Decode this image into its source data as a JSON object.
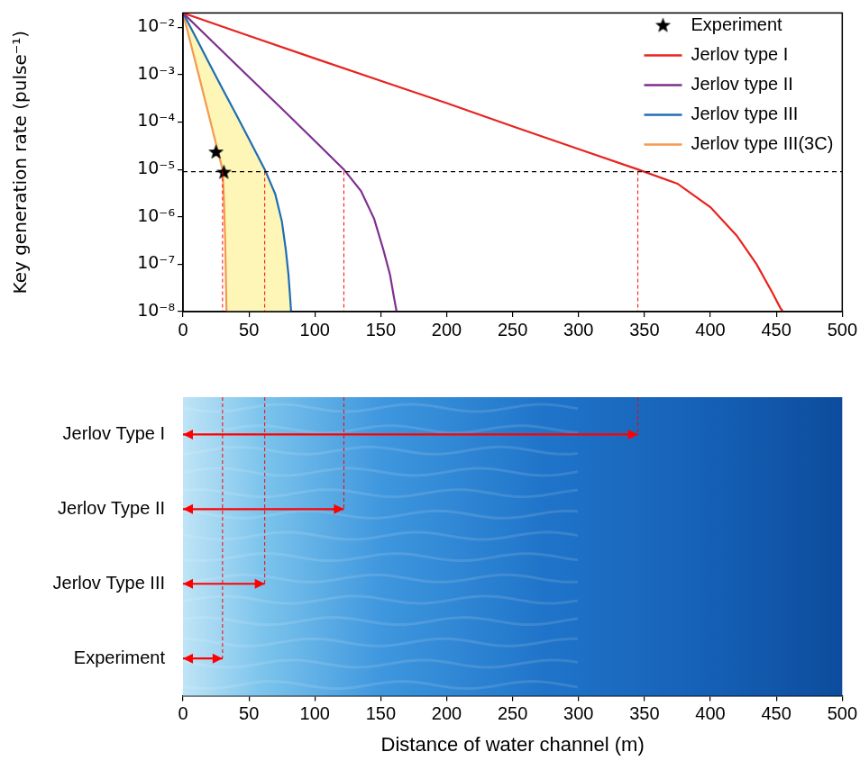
{
  "chart_data": [
    {
      "type": "line",
      "y_label": "Key generation rate (pulse⁻¹)",
      "log": "y",
      "grid": false,
      "legend": "upper right",
      "xlim": [
        0,
        500
      ],
      "xticks": [
        0,
        50,
        100,
        150,
        200,
        250,
        300,
        350,
        400,
        450,
        500
      ],
      "ylim": [
        1e-08,
        0.02
      ],
      "yticks": [
        {
          "value": 1e-08,
          "label": "10⁻⁸"
        },
        {
          "value": 1e-07,
          "label": "10⁻⁷"
        },
        {
          "value": 1e-06,
          "label": "10⁻⁶"
        },
        {
          "value": 1e-05,
          "label": "10⁻⁵"
        },
        {
          "value": 0.0001,
          "label": "10⁻⁴"
        },
        {
          "value": 0.001,
          "label": "10⁻³"
        },
        {
          "value": 0.01,
          "label": "10⁻²"
        }
      ],
      "hline": {
        "y": 9e-06,
        "line_style": "dashed",
        "color": "#000000"
      },
      "series": [
        {
          "name": "Experiment",
          "type": "scatter",
          "marker": "star",
          "color": "#000000",
          "x": [
            25,
            31
          ],
          "values": [
            2.4e-05,
            9e-06
          ]
        },
        {
          "name": "Jerlov type I",
          "type": "line",
          "color": "#e8231f",
          "x": [
            0,
            50,
            100,
            150,
            200,
            250,
            300,
            345,
            375,
            400,
            420,
            435,
            447,
            453,
            455
          ],
          "values": [
            0.02,
            0.0066,
            0.0022,
            0.00074,
            0.00025,
            8.1e-05,
            2.7e-05,
            1e-05,
            5e-06,
            1.6e-06,
            4e-07,
            1e-07,
            2.5e-08,
            1.2e-08,
            1e-08
          ]
        },
        {
          "name": "Jerlov type II",
          "type": "line",
          "color": "#7e2f8e",
          "x": [
            0,
            25,
            50,
            75,
            100,
            122,
            135,
            145,
            152,
            157,
            160,
            162
          ],
          "values": [
            0.02,
            0.0042,
            0.00089,
            0.00019,
            4e-05,
            1e-05,
            3.5e-06,
            9e-07,
            2e-07,
            6e-08,
            2e-08,
            1e-08
          ]
        },
        {
          "name": "Jerlov type III",
          "type": "line",
          "color": "#1f6db3",
          "x": [
            0,
            10,
            20,
            30,
            40,
            50,
            62,
            70,
            75,
            78,
            80,
            81,
            82
          ],
          "values": [
            0.02,
            0.0059,
            0.0017,
            0.0005,
            0.00015,
            4.4e-05,
            1e-05,
            3e-06,
            8e-07,
            2e-07,
            6e-08,
            2.5e-08,
            1e-08
          ]
        },
        {
          "name": "Jerlov type III(3C)",
          "type": "line",
          "color": "#f39a4f",
          "x": [
            0,
            5,
            10,
            15,
            20,
            25,
            30,
            31,
            32,
            33
          ],
          "values": [
            0.02,
            0.0056,
            0.0016,
            0.00045,
            0.000126,
            3.5e-05,
            1e-05,
            2.5e-06,
            3e-07,
            1e-08
          ]
        }
      ]
    },
    {
      "type": "arrow",
      "orientation": "horizontal",
      "grid": false,
      "x_label": "Distance of water channel (m)",
      "xlim": [
        0,
        500
      ],
      "xticks": [
        0,
        50,
        100,
        150,
        200,
        250,
        300,
        350,
        400,
        450,
        500
      ],
      "categories": [
        "Jerlov Type I",
        "Jerlov Type II",
        "Jerlov Type III",
        "Experiment"
      ],
      "values": [
        345,
        122,
        62,
        30
      ],
      "color": "#ff0000"
    }
  ]
}
